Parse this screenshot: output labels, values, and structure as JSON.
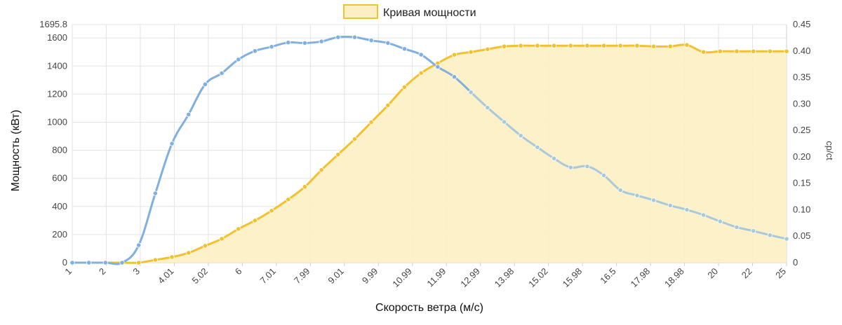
{
  "chart_data": {
    "type": "line",
    "legend": {
      "label": "Кривая мощности",
      "placement": "top-center",
      "fill_color": "#fdefc4",
      "border_color": "#f2c12e"
    },
    "xlabel": "Скорость ветра (м/с)",
    "ylabel_left": "Мощность (кВт)",
    "ylabel_right": "cp/ct",
    "grid": true,
    "x_tick_labels": [
      "1",
      "2",
      "3",
      "4.01",
      "5.02",
      "6",
      "7.01",
      "7.99",
      "9.01",
      "9.99",
      "10.99",
      "11.99",
      "12.99",
      "13.98",
      "15.02",
      "15.98",
      "16.5",
      "17.98",
      "18.98",
      "20",
      "22",
      "25"
    ],
    "y_left": {
      "min": 0,
      "max": 1695.8,
      "ticks": [
        "0",
        "200",
        "400",
        "600",
        "800",
        "1000",
        "1200",
        "1400",
        "1600",
        "1695.8"
      ]
    },
    "y_right": {
      "min": 0,
      "max": 0.45,
      "ticks": [
        "0",
        "0.05",
        "0.10",
        "0.15",
        "0.20",
        "0.25",
        "0.30",
        "0.35",
        "0.40",
        "0.45"
      ]
    },
    "series": [
      {
        "name": "Кривая мощности",
        "axis": "left",
        "color": "#f2c12e",
        "fill": "#fdefc4",
        "values": [
          0,
          0,
          0,
          0,
          0,
          20,
          40,
          70,
          120,
          170,
          240,
          300,
          370,
          450,
          540,
          660,
          770,
          880,
          1000,
          1120,
          1250,
          1350,
          1420,
          1480,
          1500,
          1520,
          1540,
          1545,
          1545,
          1545,
          1545,
          1545,
          1545,
          1545,
          1545,
          1540,
          1540,
          1550,
          1500,
          1505,
          1505,
          1505,
          1505,
          1505
        ]
      },
      {
        "name": "cp",
        "axis": "right",
        "color": "#7fb0e0",
        "color_tail": "#a8c9da",
        "values": [
          0,
          0,
          0,
          0,
          0.033,
          0.131,
          0.225,
          0.28,
          0.337,
          0.358,
          0.384,
          0.4,
          0.408,
          0.416,
          0.415,
          0.418,
          0.426,
          0.426,
          0.42,
          0.415,
          0.404,
          0.393,
          0.37,
          0.351,
          0.322,
          0.293,
          0.266,
          0.24,
          0.218,
          0.197,
          0.18,
          0.182,
          0.165,
          0.137,
          0.127,
          0.118,
          0.108,
          0.1,
          0.09,
          0.078,
          0.067,
          0.06,
          0.052,
          0.045
        ]
      }
    ]
  }
}
